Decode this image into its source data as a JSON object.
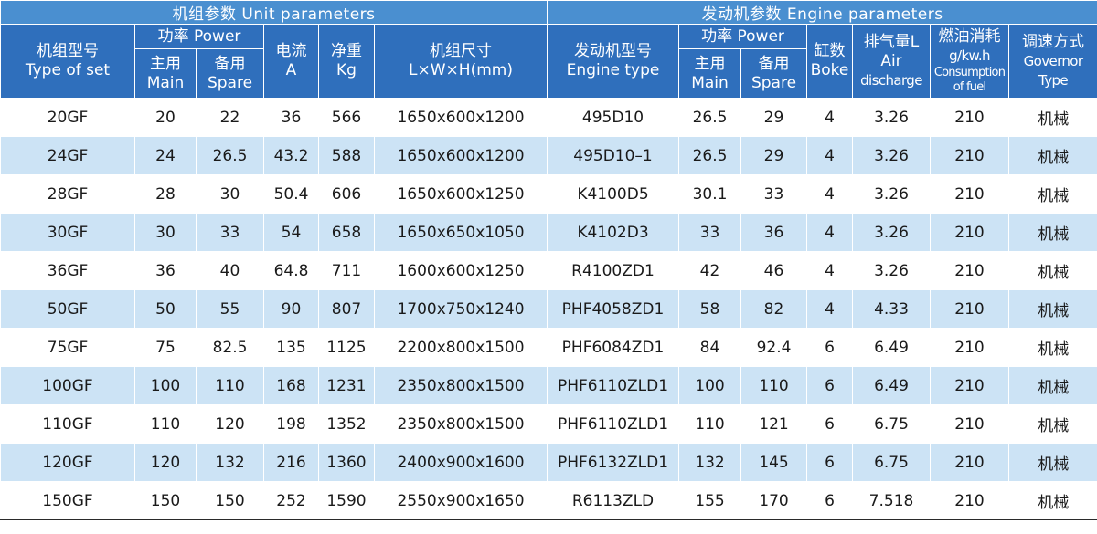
{
  "header": {
    "unit_section": "机组参数 Unit parameters",
    "engine_section": "发动机参数 Engine parameters",
    "type_set": [
      "机组型号",
      "Type of set"
    ],
    "power": "功率 Power",
    "current": [
      "电流",
      "A"
    ],
    "weight": [
      "净重",
      "Kg"
    ],
    "dimensions": [
      "机组尺寸",
      "L×W×H(mm)"
    ],
    "engine_type": [
      "发动机型号",
      "Engine type"
    ],
    "engine_power": "功率 Power",
    "cylinders": [
      "缸数",
      "Boke"
    ],
    "air_discharge": [
      "排气量L",
      "Air",
      "discharge"
    ],
    "fuel": [
      "燃油消耗",
      "g/kw.h",
      "Consumption",
      "of fuel"
    ],
    "governor": [
      "调速方式",
      "Governor",
      "Type"
    ],
    "main": [
      "主用",
      "Main"
    ],
    "spare": [
      "备用",
      "Spare"
    ]
  },
  "rows": [
    {
      "set": "20GF",
      "main": "20",
      "spare": "22",
      "current": "36",
      "weight": "566",
      "dims": "1650x600x1200",
      "engine": "495D10",
      "e_main": "26.5",
      "e_spare": "29",
      "cyl": "4",
      "air": "3.26",
      "fuel": "210",
      "gov": "机械"
    },
    {
      "set": "24GF",
      "main": "24",
      "spare": "26.5",
      "current": "43.2",
      "weight": "588",
      "dims": "1650x600x1200",
      "engine": "495D10–1",
      "e_main": "26.5",
      "e_spare": "29",
      "cyl": "4",
      "air": "3.26",
      "fuel": "210",
      "gov": "机械"
    },
    {
      "set": "28GF",
      "main": "28",
      "spare": "30",
      "current": "50.4",
      "weight": "606",
      "dims": "1650x600x1250",
      "engine": "K4100D5",
      "e_main": "30.1",
      "e_spare": "33",
      "cyl": "4",
      "air": "3.26",
      "fuel": "210",
      "gov": "机械"
    },
    {
      "set": "30GF",
      "main": "30",
      "spare": "33",
      "current": "54",
      "weight": "658",
      "dims": "1650x650x1050",
      "engine": "K4102D3",
      "e_main": "33",
      "e_spare": "36",
      "cyl": "4",
      "air": "3.26",
      "fuel": "210",
      "gov": "机械"
    },
    {
      "set": "36GF",
      "main": "36",
      "spare": "40",
      "current": "64.8",
      "weight": "711",
      "dims": "1600x600x1250",
      "engine": "R4100ZD1",
      "e_main": "42",
      "e_spare": "46",
      "cyl": "4",
      "air": "3.26",
      "fuel": "210",
      "gov": "机械"
    },
    {
      "set": "50GF",
      "main": "50",
      "spare": "55",
      "current": "90",
      "weight": "807",
      "dims": "1700x750x1240",
      "engine": "PHF4058ZD1",
      "e_main": "58",
      "e_spare": "82",
      "cyl": "4",
      "air": "4.33",
      "fuel": "210",
      "gov": "机械"
    },
    {
      "set": "75GF",
      "main": "75",
      "spare": "82.5",
      "current": "135",
      "weight": "1125",
      "dims": "2200x800x1500",
      "engine": "PHF6084ZD1",
      "e_main": "84",
      "e_spare": "92.4",
      "cyl": "6",
      "air": "6.49",
      "fuel": "210",
      "gov": "机械"
    },
    {
      "set": "100GF",
      "main": "100",
      "spare": "110",
      "current": "168",
      "weight": "1231",
      "dims": "2350x800x1500",
      "engine": "PHF6110ZLD1",
      "e_main": "100",
      "e_spare": "110",
      "cyl": "6",
      "air": "6.49",
      "fuel": "210",
      "gov": "机械"
    },
    {
      "set": "110GF",
      "main": "110",
      "spare": "120",
      "current": "198",
      "weight": "1352",
      "dims": "2350x800x1500",
      "engine": "PHF6110ZLD1",
      "e_main": "110",
      "e_spare": "121",
      "cyl": "6",
      "air": "6.75",
      "fuel": "210",
      "gov": "机械"
    },
    {
      "set": "120GF",
      "main": "120",
      "spare": "132",
      "current": "216",
      "weight": "1360",
      "dims": "2400x900x1600",
      "engine": "PHF6132ZLD1",
      "e_main": "132",
      "e_spare": "145",
      "cyl": "6",
      "air": "6.75",
      "fuel": "210",
      "gov": "机械"
    },
    {
      "set": "150GF",
      "main": "150",
      "spare": "150",
      "current": "252",
      "weight": "1590",
      "dims": "2550x900x1650",
      "engine": "R6113ZLD",
      "e_main": "155",
      "e_spare": "170",
      "cyl": "6",
      "air": "7.518",
      "fuel": "210",
      "gov": "机械"
    }
  ]
}
